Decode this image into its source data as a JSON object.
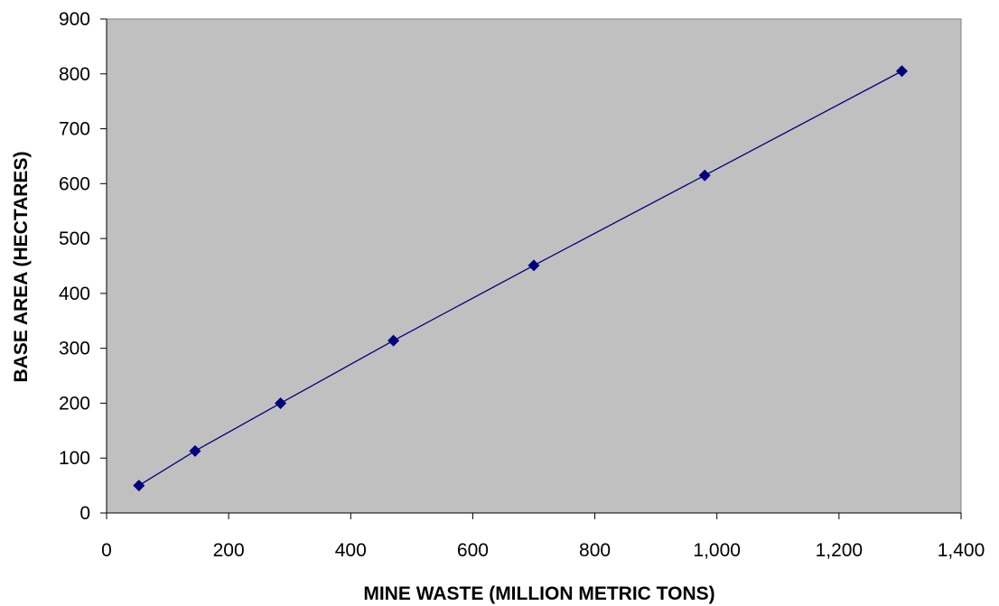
{
  "chart_data": {
    "type": "line",
    "title": "",
    "xlabel": "MINE WASTE (MILLION METRIC TONS)",
    "ylabel": "BASE AREA (HECTARES)",
    "xlim": [
      0,
      1400
    ],
    "ylim": [
      0,
      900
    ],
    "x_ticks": [
      0,
      200,
      400,
      600,
      800,
      1000,
      1200,
      1400
    ],
    "x_tick_labels": [
      "0",
      "200",
      "400",
      "600",
      "800",
      "1,000",
      "1,200",
      "1,400"
    ],
    "y_ticks": [
      0,
      100,
      200,
      300,
      400,
      500,
      600,
      700,
      800,
      900
    ],
    "y_tick_labels": [
      "0",
      "100",
      "200",
      "300",
      "400",
      "500",
      "600",
      "700",
      "800",
      "900"
    ],
    "grid": false,
    "legend": "none",
    "series": [
      {
        "marker": "diamond",
        "x": [
          53,
          145,
          285,
          470,
          700,
          980,
          1303
        ],
        "y": [
          50,
          113,
          200,
          314,
          451,
          615,
          805
        ]
      }
    ],
    "colors": {
      "plot_background": "#c0c0c0",
      "series": "#000080",
      "axis": "#000000"
    }
  }
}
